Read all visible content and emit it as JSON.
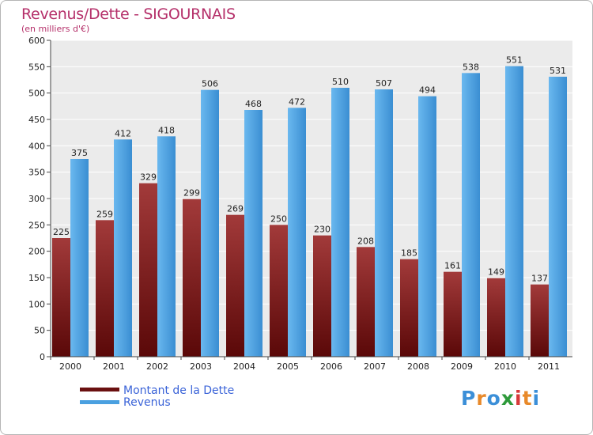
{
  "chart_data": {
    "type": "bar",
    "title": "Revenus/Dette - SIGOURNAIS",
    "subtitle": "(en milliers d'€)",
    "categories": [
      "2000",
      "2001",
      "2002",
      "2003",
      "2004",
      "2005",
      "2006",
      "2007",
      "2008",
      "2009",
      "2010",
      "2011"
    ],
    "series": [
      {
        "name": "Montant de la Dette",
        "color": "#7a1a1a",
        "values": [
          225,
          259,
          329,
          299,
          269,
          250,
          230,
          208,
          185,
          161,
          149,
          137
        ]
      },
      {
        "name": "Revenus",
        "color": "#4aa0e0",
        "values": [
          375,
          412,
          418,
          506,
          468,
          472,
          510,
          507,
          494,
          538,
          551,
          531
        ]
      }
    ],
    "ylim": [
      0,
      600
    ],
    "yticks": [
      0,
      50,
      100,
      150,
      200,
      250,
      300,
      350,
      400,
      450,
      500,
      550,
      600
    ],
    "grid": true,
    "legend": "bottom-left",
    "colors": {
      "title": "#b5306a",
      "legend_text": "#3a63d8",
      "background": "#ffffff",
      "plot_background": "#ebebeb"
    }
  },
  "logo": {
    "letters": [
      {
        "ch": "P",
        "color": "#3b8fd8"
      },
      {
        "ch": "r",
        "color": "#e8892a"
      },
      {
        "ch": "o",
        "color": "#3b8fd8"
      },
      {
        "ch": "x",
        "color": "#2e9a3a"
      },
      {
        "ch": "i",
        "color": "#d83a3a"
      },
      {
        "ch": "t",
        "color": "#e8892a"
      },
      {
        "ch": "i",
        "color": "#3b8fd8"
      }
    ]
  }
}
